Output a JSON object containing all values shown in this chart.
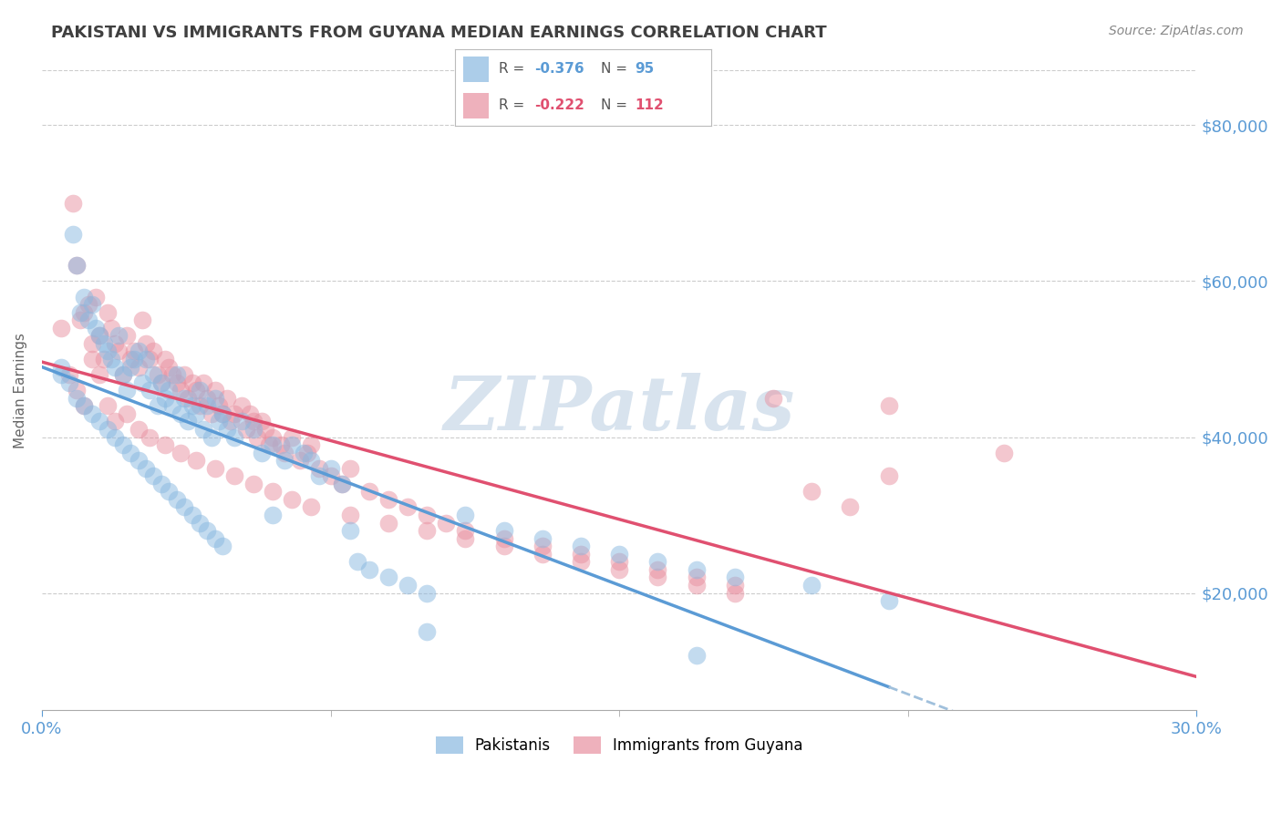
{
  "title": "PAKISTANI VS IMMIGRANTS FROM GUYANA MEDIAN EARNINGS CORRELATION CHART",
  "source": "Source: ZipAtlas.com",
  "ylabel": "Median Earnings",
  "legend_entries": [
    {
      "label": "Pakistanis",
      "R": -0.376,
      "N": 95
    },
    {
      "label": "Immigrants from Guyana",
      "R": -0.222,
      "N": 112
    }
  ],
  "xmin": 0.0,
  "xmax": 0.3,
  "ymin": 5000,
  "ymax": 87000,
  "yticks": [
    20000,
    40000,
    60000,
    80000
  ],
  "grid_color": "#cccccc",
  "background_color": "#ffffff",
  "watermark": "ZIPatlas",
  "watermark_color": "#c8d8e8",
  "blue_scatter_x": [
    0.005,
    0.008,
    0.009,
    0.01,
    0.011,
    0.012,
    0.013,
    0.014,
    0.015,
    0.016,
    0.017,
    0.018,
    0.019,
    0.02,
    0.021,
    0.022,
    0.023,
    0.024,
    0.025,
    0.026,
    0.027,
    0.028,
    0.029,
    0.03,
    0.031,
    0.032,
    0.033,
    0.034,
    0.035,
    0.036,
    0.037,
    0.038,
    0.039,
    0.04,
    0.041,
    0.042,
    0.043,
    0.044,
    0.045,
    0.046,
    0.047,
    0.048,
    0.05,
    0.052,
    0.055,
    0.057,
    0.06,
    0.063,
    0.065,
    0.068,
    0.07,
    0.072,
    0.075,
    0.078,
    0.082,
    0.085,
    0.09,
    0.095,
    0.1,
    0.11,
    0.12,
    0.13,
    0.14,
    0.15,
    0.16,
    0.17,
    0.18,
    0.2,
    0.22,
    0.005,
    0.007,
    0.009,
    0.011,
    0.013,
    0.015,
    0.017,
    0.019,
    0.021,
    0.023,
    0.025,
    0.027,
    0.029,
    0.031,
    0.033,
    0.035,
    0.037,
    0.039,
    0.041,
    0.043,
    0.045,
    0.047,
    0.06,
    0.08,
    0.1,
    0.17
  ],
  "blue_scatter_y": [
    49000,
    66000,
    62000,
    56000,
    58000,
    55000,
    57000,
    54000,
    53000,
    52000,
    51000,
    50000,
    49000,
    53000,
    48000,
    46000,
    49000,
    50000,
    51000,
    47000,
    50000,
    46000,
    48000,
    44000,
    47000,
    45000,
    46000,
    44000,
    48000,
    43000,
    45000,
    42000,
    44000,
    43000,
    46000,
    41000,
    44000,
    40000,
    45000,
    42000,
    43000,
    41000,
    40000,
    42000,
    41000,
    38000,
    39000,
    37000,
    39000,
    38000,
    37000,
    35000,
    36000,
    34000,
    24000,
    23000,
    22000,
    21000,
    20000,
    30000,
    28000,
    27000,
    26000,
    25000,
    24000,
    23000,
    22000,
    21000,
    19000,
    48000,
    47000,
    45000,
    44000,
    43000,
    42000,
    41000,
    40000,
    39000,
    38000,
    37000,
    36000,
    35000,
    34000,
    33000,
    32000,
    31000,
    30000,
    29000,
    28000,
    27000,
    26000,
    30000,
    28000,
    15000,
    12000
  ],
  "pink_scatter_x": [
    0.005,
    0.008,
    0.009,
    0.01,
    0.011,
    0.012,
    0.013,
    0.014,
    0.015,
    0.016,
    0.017,
    0.018,
    0.019,
    0.02,
    0.021,
    0.022,
    0.023,
    0.024,
    0.025,
    0.026,
    0.027,
    0.028,
    0.029,
    0.03,
    0.031,
    0.032,
    0.033,
    0.034,
    0.035,
    0.036,
    0.037,
    0.038,
    0.039,
    0.04,
    0.041,
    0.042,
    0.043,
    0.044,
    0.045,
    0.046,
    0.047,
    0.048,
    0.049,
    0.05,
    0.052,
    0.053,
    0.054,
    0.055,
    0.056,
    0.057,
    0.058,
    0.059,
    0.06,
    0.062,
    0.063,
    0.065,
    0.067,
    0.069,
    0.07,
    0.072,
    0.075,
    0.078,
    0.08,
    0.085,
    0.09,
    0.095,
    0.1,
    0.105,
    0.11,
    0.12,
    0.13,
    0.14,
    0.15,
    0.16,
    0.17,
    0.18,
    0.19,
    0.2,
    0.21,
    0.22,
    0.007,
    0.009,
    0.011,
    0.013,
    0.015,
    0.017,
    0.019,
    0.022,
    0.025,
    0.028,
    0.032,
    0.036,
    0.04,
    0.045,
    0.05,
    0.055,
    0.06,
    0.065,
    0.07,
    0.08,
    0.09,
    0.1,
    0.11,
    0.12,
    0.13,
    0.14,
    0.15,
    0.16,
    0.17,
    0.18,
    0.22,
    0.25
  ],
  "pink_scatter_y": [
    54000,
    70000,
    62000,
    55000,
    56000,
    57000,
    52000,
    58000,
    53000,
    50000,
    56000,
    54000,
    52000,
    51000,
    48000,
    53000,
    50000,
    51000,
    49000,
    55000,
    52000,
    50000,
    51000,
    48000,
    47000,
    50000,
    49000,
    48000,
    47000,
    46000,
    48000,
    45000,
    47000,
    46000,
    44000,
    47000,
    45000,
    43000,
    46000,
    44000,
    43000,
    45000,
    42000,
    43000,
    44000,
    41000,
    43000,
    42000,
    40000,
    42000,
    41000,
    39000,
    40000,
    39000,
    38000,
    40000,
    37000,
    38000,
    39000,
    36000,
    35000,
    34000,
    36000,
    33000,
    32000,
    31000,
    30000,
    29000,
    28000,
    27000,
    26000,
    25000,
    24000,
    23000,
    22000,
    21000,
    45000,
    33000,
    31000,
    35000,
    48000,
    46000,
    44000,
    50000,
    48000,
    44000,
    42000,
    43000,
    41000,
    40000,
    39000,
    38000,
    37000,
    36000,
    35000,
    34000,
    33000,
    32000,
    31000,
    30000,
    29000,
    28000,
    27000,
    26000,
    25000,
    24000,
    23000,
    22000,
    21000,
    20000,
    44000,
    38000
  ],
  "blue_line_color": "#5b9bd5",
  "blue_dot_color": "#89b8e0",
  "blue_dash_color": "#a0c0dc",
  "pink_line_color": "#e05070",
  "pink_dot_color": "#e890a0",
  "title_color": "#404040",
  "tick_label_color": "#5b9bd5"
}
